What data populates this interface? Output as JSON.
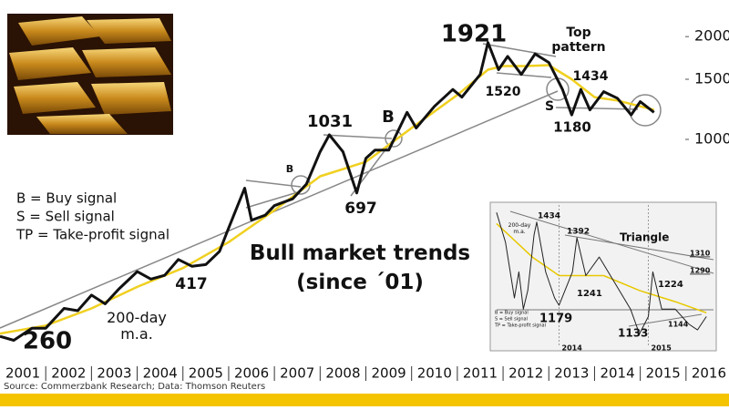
{
  "chart_data": [
    {
      "type": "line",
      "title": "Bull market trends (since ´01)",
      "log_scale": true,
      "xlim": [
        2001,
        2016.94
      ],
      "ylim": [
        222,
        2560
      ],
      "xticks": [
        2001,
        2002,
        2003,
        2004,
        2005,
        2006,
        2007,
        2008,
        2009,
        2010,
        2011,
        2012,
        2013,
        2014,
        2015,
        2016
      ],
      "yticks": [
        1000,
        1500,
        2000
      ],
      "series": [
        {
          "color": "#111111",
          "x": [
            2001.0,
            2001.3,
            2001.7,
            2002.0,
            2002.4,
            2002.7,
            2003.0,
            2003.3,
            2003.6,
            2004.0,
            2004.3,
            2004.6,
            2004.9,
            2005.2,
            2005.5,
            2005.8,
            2006.0,
            2006.35,
            2006.5,
            2006.8,
            2007.0,
            2007.4,
            2007.7,
            2008.0,
            2008.2,
            2008.5,
            2008.8,
            2009.0,
            2009.2,
            2009.5,
            2009.9,
            2010.1,
            2010.5,
            2010.9,
            2011.1,
            2011.5,
            2011.67,
            2011.9,
            2012.1,
            2012.4,
            2012.7,
            2013.0,
            2013.3,
            2013.5,
            2013.7,
            2013.9,
            2014.2,
            2014.5,
            2014.8,
            2015.0,
            2015.3
          ],
          "values": [
            265,
            258,
            280,
            280,
            320,
            315,
            350,
            330,
            365,
            410,
            390,
            400,
            445,
            425,
            430,
            470,
            550,
            720,
            580,
            600,
            640,
            670,
            740,
            920,
            1031,
            920,
            697,
            880,
            930,
            930,
            1200,
            1080,
            1250,
            1400,
            1330,
            1550,
            1921,
            1600,
            1750,
            1550,
            1780,
            1680,
            1400,
            1180,
            1400,
            1220,
            1380,
            1320,
            1180,
            1290,
            1200
          ]
        },
        {
          "name": "200-day m.a.",
          "color": "#f0d020",
          "x": [
            2001,
            2002,
            2003,
            2004,
            2005,
            2006,
            2007,
            2008,
            2009,
            2010,
            2011,
            2011.67,
            2012,
            2012.5,
            2013,
            2013.5,
            2014,
            2014.5,
            2015,
            2015.3
          ],
          "values": [
            270,
            285,
            320,
            370,
            420,
            500,
            620,
            780,
            860,
            1080,
            1350,
            1600,
            1640,
            1640,
            1650,
            1500,
            1330,
            1300,
            1250,
            1220
          ]
        }
      ],
      "annotations": [
        "1921",
        "Top pattern",
        "1434",
        "1520",
        "S",
        "1180",
        "1031",
        "B",
        "B",
        "697",
        "417",
        "260"
      ],
      "legend_text": [
        "B = Buy signal",
        "S = Sell signal",
        "TP = Take-profit signal"
      ],
      "source": "Source: Commerzbank Research; Data: Thomson Reuters"
    },
    {
      "type": "line",
      "xlim": [
        2013.25,
        2015.75
      ],
      "ylim": [
        1100,
        1480
      ],
      "xticks": [
        2014,
        2015
      ],
      "series": [
        {
          "color": "#222222",
          "x": [
            2013.3,
            2013.4,
            2013.5,
            2013.55,
            2013.6,
            2013.65,
            2013.72,
            2013.75,
            2013.85,
            2013.95,
            2014.0,
            2014.15,
            2014.2,
            2014.3,
            2014.45,
            2014.55,
            2014.7,
            2014.8,
            2014.9,
            2015.0,
            2015.05,
            2015.15,
            2015.3,
            2015.45,
            2015.55,
            2015.65
          ],
          "values": [
            1460,
            1380,
            1230,
            1300,
            1200,
            1250,
            1400,
            1434,
            1300,
            1230,
            1210,
            1300,
            1392,
            1290,
            1340,
            1300,
            1240,
            1200,
            1133,
            1180,
            1300,
            1200,
            1200,
            1160,
            1144,
            1180
          ]
        },
        {
          "color": "#e8c800",
          "x": [
            2013.3,
            2013.7,
            2014.0,
            2014.5,
            2014.9,
            2015.3,
            2015.65
          ],
          "values": [
            1430,
            1340,
            1290,
            1290,
            1250,
            1220,
            1190
          ]
        }
      ],
      "annotations": [
        "1434",
        "1392",
        "Triangle",
        "1310",
        "1290",
        "1224",
        "1241",
        "1179",
        "1133",
        "1144",
        "200-day m.a."
      ],
      "legend_text": [
        "B = Buy signal",
        "S = Sell signal",
        "TP = Take-profit signal"
      ]
    }
  ]
}
